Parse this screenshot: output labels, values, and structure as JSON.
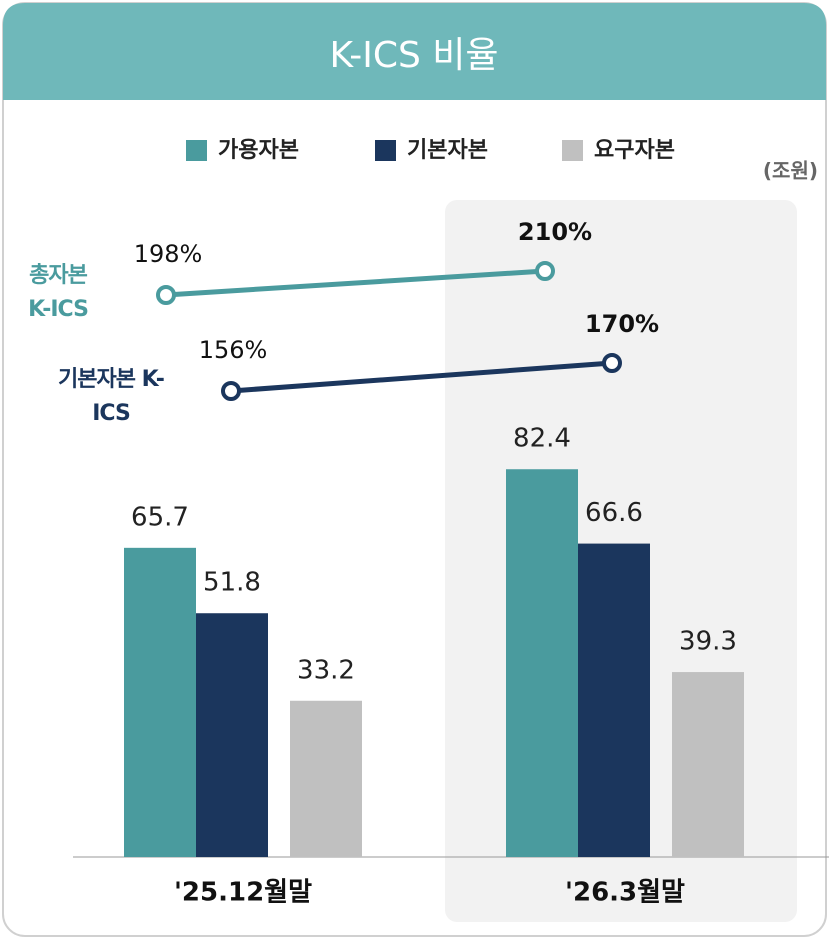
{
  "chart_data": {
    "type": "bar",
    "title": "K-ICS 비율",
    "unit": "(조원)",
    "categories": [
      "'25.12월말",
      "'26.3월말"
    ],
    "highlight": 1,
    "ylim": [
      0,
      85
    ],
    "series": [
      {
        "name": "가용자본",
        "color": "#4a9b9e",
        "values": [
          65.7,
          82.4
        ]
      },
      {
        "name": "기본자본",
        "color": "#1b365d",
        "values": [
          51.8,
          66.6
        ]
      },
      {
        "name": "요구자본",
        "color": "#c0c0c0",
        "values": [
          33.2,
          39.3
        ]
      }
    ],
    "lines": [
      {
        "name": "총자본 K-ICS",
        "color": "#4a9b9e",
        "values": [
          198,
          210
        ],
        "value_labels": [
          "198%",
          "210%"
        ]
      },
      {
        "name": "기본자본 K-ICS",
        "color": "#1b365d",
        "values": [
          156,
          170
        ],
        "value_labels": [
          "156%",
          "170%"
        ]
      }
    ]
  }
}
